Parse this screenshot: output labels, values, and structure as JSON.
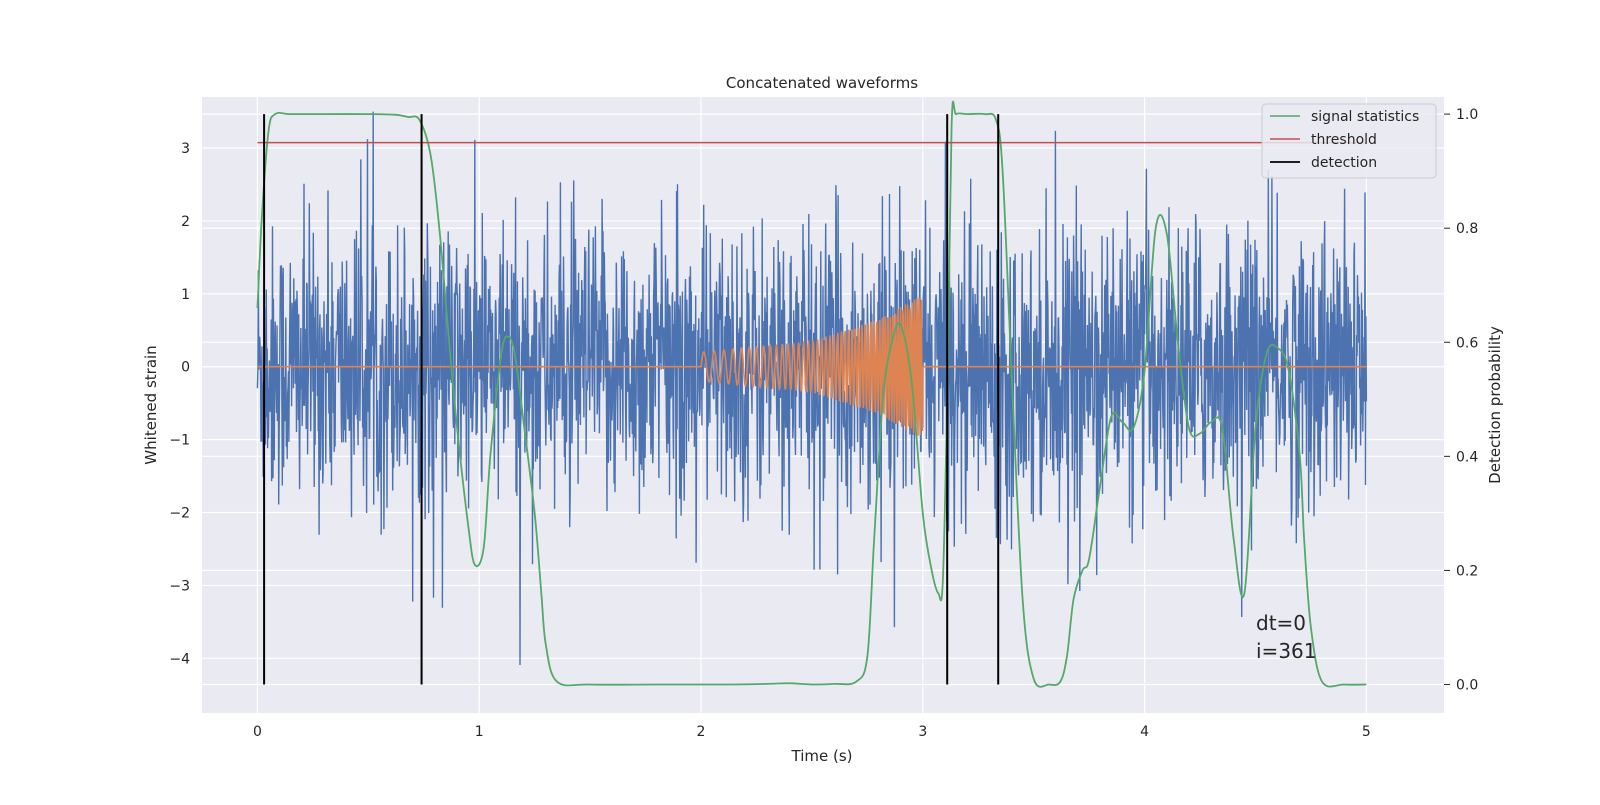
{
  "chart_data": {
    "type": "line",
    "title": "Concatenated waveforms",
    "xlabel": "Time (s)",
    "ylabel": "Whitened strain",
    "y2label": "Detection probability",
    "xlim": [
      -0.25,
      5.35
    ],
    "ylim": [
      -4.75,
      3.7
    ],
    "y2lim": [
      -0.05,
      1.03
    ],
    "x_ticks": [
      0,
      1,
      2,
      3,
      4,
      5
    ],
    "x_tick_labels": [
      "0",
      "1",
      "2",
      "3",
      "4",
      "5"
    ],
    "y_ticks": [
      -4,
      -3,
      -2,
      -1,
      0,
      1,
      2,
      3
    ],
    "y_tick_labels": [
      "−4",
      "−3",
      "−2",
      "−1",
      "0",
      "1",
      "2",
      "3"
    ],
    "y2_ticks": [
      0.0,
      0.2,
      0.4,
      0.6,
      0.8,
      1.0
    ],
    "y2_tick_labels": [
      "0.0",
      "0.2",
      "0.4",
      "0.6",
      "0.8",
      "1.0"
    ],
    "grid": true,
    "legend_position": "top-right",
    "colors": {
      "background": "#eaeaf2",
      "grid": "#ffffff",
      "strain": "#4c72b0",
      "chirp": "#dd8452",
      "stat": "#55a868",
      "threshold": "#c44e52",
      "detection": "#000000"
    },
    "series": [
      {
        "name": "",
        "axis": "left",
        "kind": "noise",
        "color": "#4c72b0",
        "x_range": [
          0,
          5
        ],
        "amplitude_range": [
          -4.4,
          3.5
        ]
      },
      {
        "name": "",
        "axis": "left",
        "kind": "chirp",
        "color": "#dd8452",
        "x_range": [
          2.0,
          3.0
        ],
        "envelope": [
          [
            2.0,
            0.2
          ],
          [
            2.5,
            0.35
          ],
          [
            2.8,
            0.65
          ],
          [
            3.0,
            1.0
          ]
        ]
      },
      {
        "name": "signal statistics",
        "axis": "right",
        "color": "#55a868",
        "x": [
          0.0,
          0.02,
          0.05,
          0.08,
          0.15,
          0.3,
          0.5,
          0.62,
          0.68,
          0.73,
          0.78,
          0.82,
          0.86,
          0.9,
          0.95,
          0.98,
          1.02,
          1.05,
          1.1,
          1.13,
          1.16,
          1.2,
          1.25,
          1.28,
          1.3,
          1.35,
          1.5,
          1.8,
          2.1,
          2.3,
          2.4,
          2.5,
          2.6,
          2.7,
          2.75,
          2.78,
          2.82,
          2.86,
          2.9,
          2.95,
          3.0,
          3.04,
          3.07,
          3.09,
          3.11,
          3.13,
          3.15,
          3.2,
          3.28,
          3.33,
          3.36,
          3.4,
          3.45,
          3.5,
          3.57,
          3.62,
          3.65,
          3.68,
          3.72,
          3.75,
          3.8,
          3.85,
          3.9,
          3.95,
          4.0,
          4.05,
          4.1,
          4.15,
          4.2,
          4.25,
          4.3,
          4.35,
          4.4,
          4.45,
          4.5,
          4.55,
          4.6,
          4.65,
          4.7,
          4.72,
          4.75,
          4.8,
          4.9,
          5.0
        ],
        "y": [
          0.66,
          0.82,
          0.97,
          1.0,
          1.0,
          1.0,
          1.0,
          0.999,
          0.995,
          0.99,
          0.93,
          0.8,
          0.62,
          0.45,
          0.28,
          0.21,
          0.24,
          0.4,
          0.58,
          0.61,
          0.58,
          0.46,
          0.3,
          0.16,
          0.07,
          0.005,
          0.0,
          0.0,
          0.0,
          0.001,
          0.002,
          0.0,
          0.001,
          0.005,
          0.05,
          0.25,
          0.5,
          0.6,
          0.63,
          0.53,
          0.3,
          0.2,
          0.16,
          0.18,
          0.5,
          0.98,
          1.0,
          1.0,
          1.0,
          0.99,
          0.9,
          0.55,
          0.15,
          0.01,
          0.0,
          0.005,
          0.05,
          0.15,
          0.2,
          0.22,
          0.35,
          0.47,
          0.46,
          0.45,
          0.55,
          0.8,
          0.79,
          0.6,
          0.45,
          0.44,
          0.46,
          0.45,
          0.26,
          0.16,
          0.45,
          0.58,
          0.59,
          0.55,
          0.4,
          0.25,
          0.1,
          0.005,
          0.0,
          0.0
        ]
      },
      {
        "name": "threshold",
        "axis": "right",
        "color": "#c44e52",
        "x": [
          0.0,
          5.0
        ],
        "y": [
          0.95,
          0.95
        ]
      },
      {
        "name": "detection",
        "axis": "right",
        "color": "#000000",
        "vlines_x": [
          0.03,
          0.74,
          3.11,
          3.34
        ],
        "ymin": 0,
        "ymax": 1
      }
    ],
    "annotations": [
      "dt=0",
      "i=361"
    ]
  }
}
